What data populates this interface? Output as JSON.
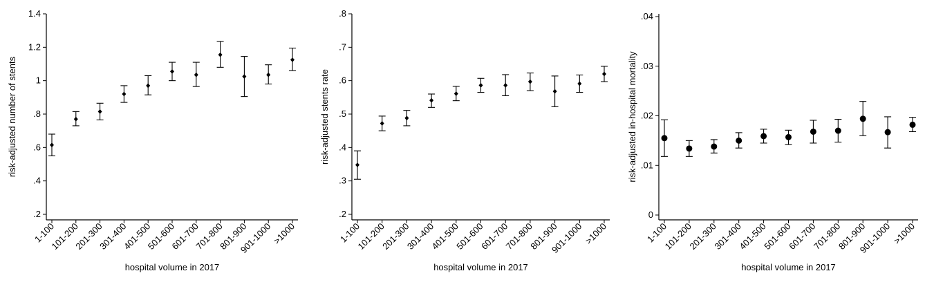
{
  "chart_data": [
    {
      "type": "scatter",
      "subtype": "errorbar",
      "xlabel": "hospital volume in 2017",
      "ylabel": "risk-adjusted number of stents",
      "categories": [
        "1-100",
        "101-200",
        "201-300",
        "301-400",
        "401-500",
        "501-600",
        "601-700",
        "701-800",
        "801-900",
        "901-1000",
        ">1000"
      ],
      "ylim": [
        0.2,
        1.4
      ],
      "yticks": [
        0.2,
        0.4,
        0.6,
        0.8,
        1.0,
        1.2,
        1.4
      ],
      "ytick_labels": [
        ".2",
        ".4",
        ".6",
        ".8",
        "1",
        "1.2",
        "1.4"
      ],
      "values": [
        0.615,
        0.77,
        0.815,
        0.92,
        0.97,
        1.055,
        1.035,
        1.155,
        1.025,
        1.035,
        1.125
      ],
      "lower": [
        0.55,
        0.73,
        0.765,
        0.87,
        0.915,
        1.0,
        0.965,
        1.08,
        0.905,
        0.98,
        1.06
      ],
      "upper": [
        0.68,
        0.815,
        0.865,
        0.97,
        1.03,
        1.11,
        1.11,
        1.235,
        1.145,
        1.095,
        1.195
      ],
      "marker": "small",
      "grid": false
    },
    {
      "type": "scatter",
      "subtype": "errorbar",
      "xlabel": "hospital volume in 2017",
      "ylabel": "risk-adjusted stents rate",
      "categories": [
        "1-100",
        "101-200",
        "201-300",
        "301-400",
        "401-500",
        "501-600",
        "601-700",
        "701-800",
        "801-900",
        "901-1000",
        ">1000"
      ],
      "ylim": [
        0.2,
        0.8
      ],
      "yticks": [
        0.2,
        0.3,
        0.4,
        0.5,
        0.6,
        0.7,
        0.8
      ],
      "ytick_labels": [
        ".2",
        ".3",
        ".4",
        ".5",
        ".6",
        ".7",
        ".8"
      ],
      "values": [
        0.348,
        0.472,
        0.488,
        0.541,
        0.561,
        0.586,
        0.586,
        0.597,
        0.568,
        0.591,
        0.62
      ],
      "lower": [
        0.305,
        0.45,
        0.465,
        0.52,
        0.54,
        0.565,
        0.555,
        0.57,
        0.522,
        0.565,
        0.597
      ],
      "upper": [
        0.39,
        0.494,
        0.511,
        0.56,
        0.583,
        0.607,
        0.618,
        0.623,
        0.614,
        0.617,
        0.643
      ],
      "marker": "small",
      "grid": false
    },
    {
      "type": "scatter",
      "subtype": "errorbar",
      "xlabel": "hospital volume in 2017",
      "ylabel": "risk-adjusted in-hospital mortality",
      "categories": [
        "1-100",
        "101-200",
        "201-300",
        "301-400",
        "401-500",
        "501-600",
        "601-700",
        "701-800",
        "801-900",
        "901-1000",
        ">1000"
      ],
      "ylim": [
        0,
        0.04
      ],
      "yticks": [
        0,
        0.01,
        0.02,
        0.03,
        0.04
      ],
      "ytick_labels": [
        "0",
        ".01",
        ".02",
        ".03",
        ".04"
      ],
      "values": [
        0.0155,
        0.0134,
        0.0138,
        0.015,
        0.0159,
        0.0157,
        0.0168,
        0.017,
        0.0194,
        0.0167,
        0.0182
      ],
      "lower": [
        0.0118,
        0.0118,
        0.0125,
        0.0135,
        0.0145,
        0.0142,
        0.0145,
        0.0147,
        0.016,
        0.0135,
        0.0168
      ],
      "upper": [
        0.0192,
        0.015,
        0.0152,
        0.0166,
        0.0173,
        0.0171,
        0.0191,
        0.0193,
        0.0229,
        0.0198,
        0.0197
      ],
      "marker": "large",
      "grid": false
    }
  ]
}
